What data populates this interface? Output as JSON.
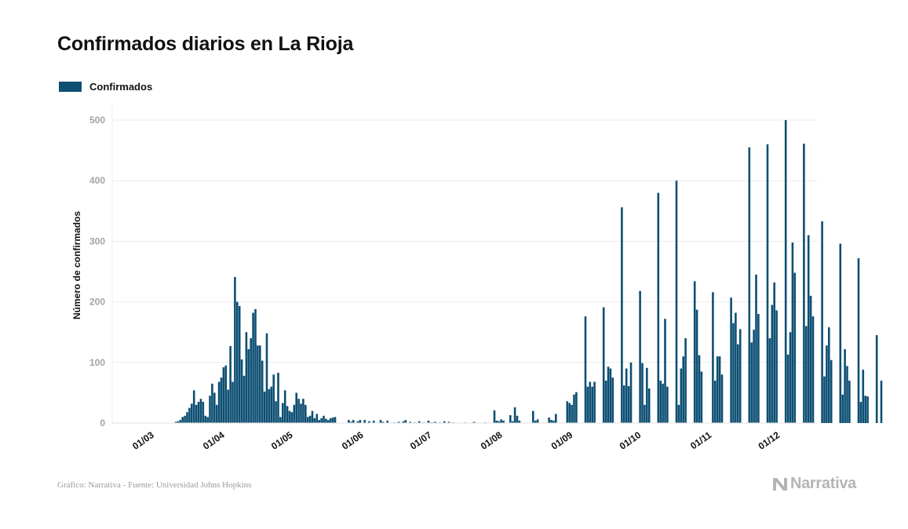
{
  "chart_data": {
    "type": "bar",
    "title": "Confirmados diarios en La Rioja",
    "ylabel": "Número de confirmados",
    "xlabel": "",
    "ylim": [
      0,
      500
    ],
    "y_ticks": [
      0,
      100,
      200,
      300,
      400,
      500
    ],
    "x_start": "2020-03-01",
    "x_ticks": [
      {
        "date": "2020-03-01",
        "label": "01/03"
      },
      {
        "date": "2020-04-01",
        "label": "01/04"
      },
      {
        "date": "2020-05-01",
        "label": "01/05"
      },
      {
        "date": "2020-06-01",
        "label": "01/06"
      },
      {
        "date": "2020-07-01",
        "label": "01/07"
      },
      {
        "date": "2020-08-01",
        "label": "01/08"
      },
      {
        "date": "2020-09-01",
        "label": "01/09"
      },
      {
        "date": "2020-10-01",
        "label": "01/10"
      },
      {
        "date": "2020-11-01",
        "label": "01/11"
      },
      {
        "date": "2020-12-01",
        "label": "01/12"
      }
    ],
    "grid": true,
    "legend_position": "top-left",
    "series": [
      {
        "name": "Confirmados",
        "color": "#0d4f73",
        "values": [
          0,
          0,
          0,
          0,
          0,
          0,
          0,
          0,
          0,
          0,
          0,
          0,
          0,
          2,
          3,
          5,
          10,
          12,
          18,
          25,
          32,
          54,
          30,
          35,
          40,
          35,
          12,
          10,
          45,
          65,
          50,
          30,
          68,
          75,
          92,
          95,
          55,
          127,
          68,
          241,
          200,
          193,
          105,
          78,
          150,
          122,
          140,
          182,
          188,
          128,
          128,
          103,
          52,
          148,
          56,
          60,
          80,
          36,
          83,
          10,
          33,
          54,
          28,
          20,
          18,
          30,
          50,
          40,
          32,
          40,
          30,
          10,
          12,
          20,
          8,
          15,
          5,
          8,
          12,
          7,
          5,
          8,
          9,
          10,
          0,
          0,
          0,
          0,
          0,
          5,
          2,
          5,
          0,
          3,
          5,
          0,
          5,
          0,
          3,
          0,
          4,
          0,
          0,
          5,
          2,
          0,
          4,
          0,
          0,
          1,
          0,
          2,
          0,
          3,
          5,
          0,
          2,
          0,
          1,
          0,
          3,
          0,
          1,
          0,
          4,
          1,
          1,
          2,
          0,
          1,
          0,
          3,
          0,
          2,
          0,
          1,
          0,
          0,
          0,
          0,
          1,
          0,
          0,
          0,
          2,
          0,
          0,
          0,
          0,
          1,
          0,
          0,
          0,
          21,
          4,
          3,
          6,
          4,
          0,
          0,
          13,
          3,
          26,
          12,
          4,
          0,
          0,
          0,
          0,
          0,
          20,
          4,
          6,
          0,
          0,
          0,
          0,
          9,
          5,
          4,
          15,
          0,
          0,
          0,
          0,
          36,
          33,
          30,
          47,
          51,
          0,
          0,
          0,
          176,
          60,
          68,
          60,
          68,
          0,
          0,
          0,
          191,
          70,
          93,
          90,
          75,
          0,
          0,
          0,
          356,
          62,
          90,
          61,
          100,
          0,
          0,
          0,
          218,
          99,
          30,
          91,
          57,
          0,
          0,
          0,
          380,
          70,
          65,
          172,
          60,
          0,
          0,
          0,
          400,
          30,
          90,
          110,
          140,
          0,
          0,
          0,
          234,
          187,
          112,
          85,
          0,
          0,
          0,
          0,
          216,
          70,
          110,
          110,
          80,
          0,
          0,
          0,
          207,
          165,
          182,
          130,
          155,
          0,
          0,
          0,
          455,
          133,
          154,
          245,
          180,
          0,
          0,
          0,
          460,
          140,
          195,
          232,
          186,
          0,
          0,
          0,
          500,
          113,
          150,
          298,
          248,
          0,
          0,
          0,
          461,
          160,
          310,
          210,
          176,
          0,
          0,
          0,
          333,
          77,
          128,
          158,
          104,
          0,
          0,
          0,
          296,
          47,
          122,
          94,
          70,
          0,
          0,
          0,
          272,
          35,
          88,
          45,
          44,
          0,
          0,
          0,
          145,
          0,
          70
        ]
      }
    ]
  },
  "footer": {
    "source": "Gráfico: Narrativa - Fuente: Universidad Johns Hopkins",
    "brand": "Narrativa"
  }
}
